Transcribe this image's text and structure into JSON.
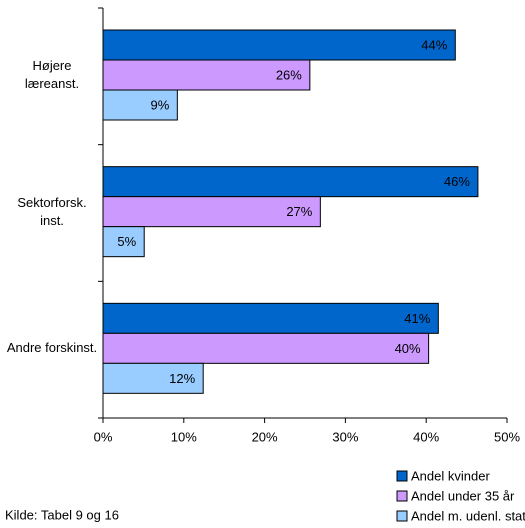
{
  "chart_data": {
    "type": "bar",
    "orientation": "horizontal",
    "categories": [
      "Højere læreanst.",
      "Sektorforsk. inst.",
      "Andre forskinst."
    ],
    "series": [
      {
        "name": "Andel kvinder",
        "color": "#0066cc",
        "values": [
          43.6,
          46.4,
          41.5
        ],
        "value_labels": [
          "44%",
          "46%",
          "41%"
        ]
      },
      {
        "name": "Andel under 35 år",
        "color": "#cc99ff",
        "values": [
          25.6,
          26.9,
          40.3
        ],
        "value_labels": [
          "26%",
          "27%",
          "40%"
        ]
      },
      {
        "name": "Andel m. udenl. statsb.",
        "color": "#99ccff",
        "values": [
          9.2,
          5.1,
          12.4
        ],
        "value_labels": [
          "9%",
          "5%",
          "12%"
        ]
      }
    ],
    "xlim": [
      0,
      50
    ],
    "xticks": [
      {
        "value": 0,
        "label": "0%"
      },
      {
        "value": 10,
        "label": "10%"
      },
      {
        "value": 20,
        "label": "20%"
      },
      {
        "value": 30,
        "label": "30%"
      },
      {
        "value": 40,
        "label": "40%"
      },
      {
        "value": 50,
        "label": "50%"
      }
    ],
    "source": "Kilde: Tabel 9 og 16",
    "legend": "bottom"
  }
}
